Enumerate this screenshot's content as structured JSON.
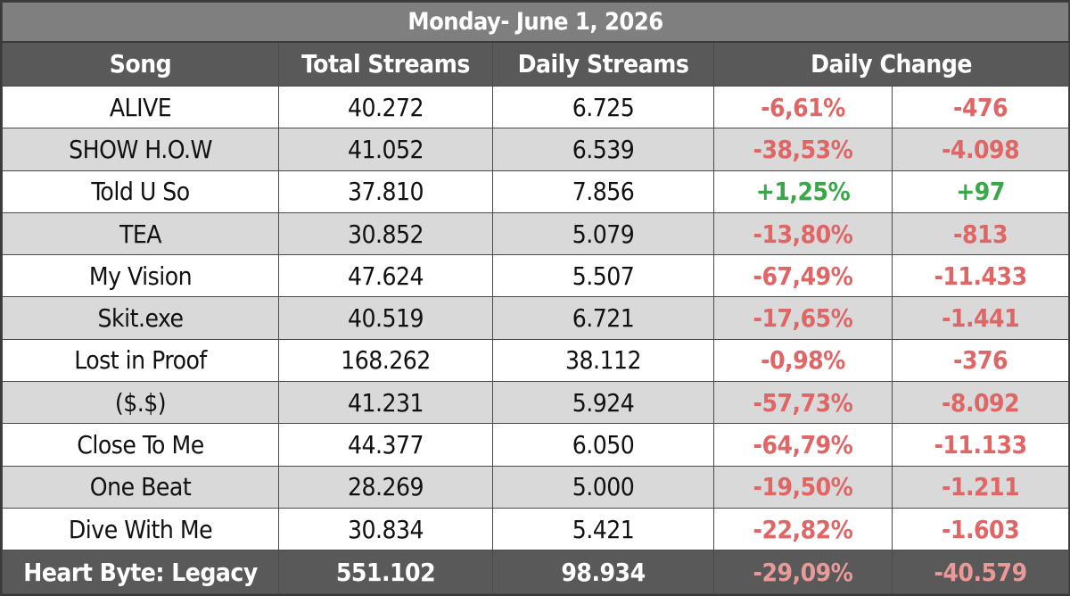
{
  "title": "Monday- June 1, 2026",
  "headers": {
    "song": "Song",
    "total_streams": "Total Streams",
    "daily_streams": "Daily Streams",
    "daily_change": "Daily Change"
  },
  "colors": {
    "title_bg": "#7f7f7f",
    "header_bg": "#595959",
    "row_alt_bg": "#d9d9d9",
    "negative": "#e06666",
    "positive": "#3aa84a"
  },
  "rows": [
    {
      "song": "ALIVE",
      "total": "40.272",
      "daily": "6.725",
      "change_pct": "-6,61%",
      "change_abs": "-476",
      "trend": "neg"
    },
    {
      "song": "SHOW H.O.W",
      "total": "41.052",
      "daily": "6.539",
      "change_pct": "-38,53%",
      "change_abs": "-4.098",
      "trend": "neg"
    },
    {
      "song": "Told U So",
      "total": "37.810",
      "daily": "7.856",
      "change_pct": "+1,25%",
      "change_abs": "+97",
      "trend": "pos"
    },
    {
      "song": "TEA",
      "total": "30.852",
      "daily": "5.079",
      "change_pct": "-13,80%",
      "change_abs": "-813",
      "trend": "neg"
    },
    {
      "song": "My Vision",
      "total": "47.624",
      "daily": "5.507",
      "change_pct": "-67,49%",
      "change_abs": "-11.433",
      "trend": "neg"
    },
    {
      "song": "Skit.exe",
      "total": "40.519",
      "daily": "6.721",
      "change_pct": "-17,65%",
      "change_abs": "-1.441",
      "trend": "neg"
    },
    {
      "song": "Lost in Proof",
      "total": "168.262",
      "daily": "38.112",
      "change_pct": "-0,98%",
      "change_abs": "-376",
      "trend": "neg"
    },
    {
      "song": "($.$)",
      "total": "41.231",
      "daily": "5.924",
      "change_pct": "-57,73%",
      "change_abs": "-8.092",
      "trend": "neg"
    },
    {
      "song": "Close To Me",
      "total": "44.377",
      "daily": "6.050",
      "change_pct": "-64,79%",
      "change_abs": "-11.133",
      "trend": "neg"
    },
    {
      "song": "One Beat",
      "total": "28.269",
      "daily": "5.000",
      "change_pct": "-19,50%",
      "change_abs": "-1.211",
      "trend": "neg"
    },
    {
      "song": "Dive With Me",
      "total": "30.834",
      "daily": "5.421",
      "change_pct": "-22,82%",
      "change_abs": "-1.603",
      "trend": "neg"
    }
  ],
  "total": {
    "label": "Heart Byte: Legacy",
    "total": "551.102",
    "daily": "98.934",
    "change_pct": "-29,09%",
    "change_abs": "-40.579",
    "trend": "neg"
  }
}
